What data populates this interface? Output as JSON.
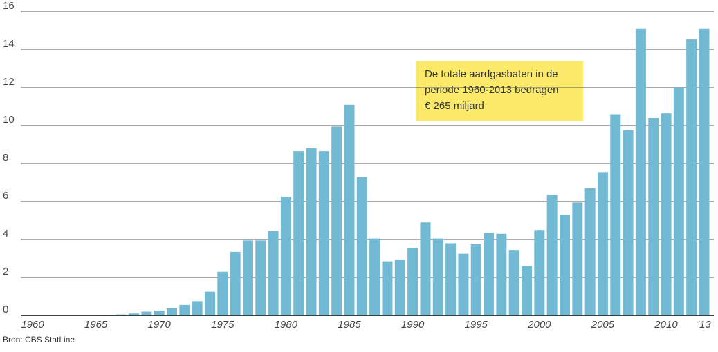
{
  "chart_data": {
    "type": "bar",
    "categories": [
      "1960",
      null,
      null,
      null,
      null,
      "1965",
      null,
      null,
      null,
      null,
      "1970",
      null,
      null,
      null,
      null,
      "1975",
      null,
      null,
      null,
      null,
      "1980",
      null,
      null,
      null,
      null,
      "1985",
      null,
      null,
      null,
      null,
      "1990",
      null,
      null,
      null,
      null,
      "1995",
      null,
      null,
      null,
      null,
      "2000",
      null,
      null,
      null,
      null,
      "2005",
      null,
      null,
      null,
      null,
      "2010",
      null,
      null,
      "'13"
    ],
    "values": [
      0,
      0,
      0,
      0,
      0,
      0,
      0.03,
      0.05,
      0.1,
      0.2,
      0.25,
      0.4,
      0.55,
      0.75,
      1.25,
      2.3,
      3.35,
      3.95,
      3.95,
      4.45,
      6.25,
      8.65,
      8.8,
      8.65,
      9.95,
      11.1,
      7.3,
      4.05,
      2.85,
      2.95,
      3.55,
      4.9,
      4.05,
      3.8,
      3.25,
      3.75,
      4.35,
      4.3,
      3.45,
      2.6,
      4.5,
      6.35,
      5.3,
      5.95,
      6.7,
      7.55,
      10.6,
      9.75,
      15.1,
      10.4,
      10.65,
      12,
      14.55,
      15.1
    ],
    "color": "#72b9d3",
    "ylim": [
      0,
      16
    ],
    "yticks": [
      0,
      2,
      4,
      6,
      8,
      10,
      12,
      14,
      16
    ],
    "grid": true,
    "annotation": [
      "De totale aardgasbaten in de",
      "periode 1960-2013 bedragen",
      "€ 265 miljard"
    ],
    "source": "Bron: CBS StatLine"
  }
}
